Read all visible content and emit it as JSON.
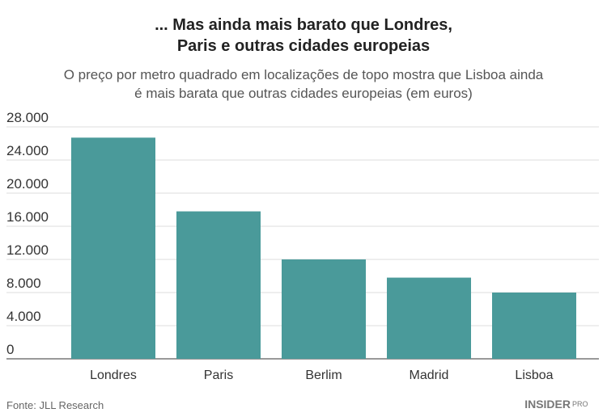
{
  "chart_data": {
    "type": "bar",
    "title": [
      "... Mas ainda mais barato que Londres,",
      "Paris e outras cidades europeias"
    ],
    "subtitle": [
      "O preço por metro quadrado em localizações de topo mostra que Lisboa ainda",
      "é mais barata que outras cidades europeias (em euros)"
    ],
    "categories": [
      "Londres",
      "Paris",
      "Berlim",
      "Madrid",
      "Lisboa"
    ],
    "values": [
      26700,
      17800,
      12000,
      9800,
      8000
    ],
    "color": "#4a9a9a",
    "ylim": [
      0,
      28000
    ],
    "yticks": [
      0,
      {
        "value": 4000,
        "label": "4.000"
      },
      {
        "value": 8000,
        "label": "8.000"
      },
      {
        "value": 12000,
        "label": "12.000"
      },
      {
        "value": 16000,
        "label": "16.000"
      },
      {
        "value": 20000,
        "label": "20.000"
      },
      {
        "value": 24000,
        "label": "24.000"
      },
      {
        "value": 28000,
        "label": "28.000"
      }
    ],
    "grid": true,
    "source": "Fonte: JLL Research",
    "logo": {
      "text": "INSIDER",
      "badge": "PRO"
    }
  }
}
